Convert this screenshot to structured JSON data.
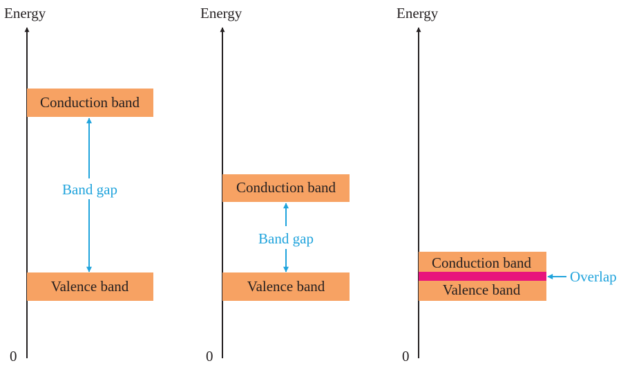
{
  "panels": [
    {
      "axis_label": "Energy",
      "origin_label": "0",
      "conduction_label": "Conduction band",
      "valence_label": "Valence band",
      "gap_label": "Band gap"
    },
    {
      "axis_label": "Energy",
      "origin_label": "0",
      "conduction_label": "Conduction band",
      "valence_label": "Valence band",
      "gap_label": "Band gap"
    },
    {
      "axis_label": "Energy",
      "origin_label": "0",
      "conduction_label": "Conduction band",
      "valence_label": "Valence band",
      "overlap_label": "Overlap"
    }
  ],
  "colors": {
    "band_fill": "#f7a263",
    "overlap_fill": "#e8147c",
    "arrow": "#1fa3dc",
    "axis": "#231f20"
  }
}
